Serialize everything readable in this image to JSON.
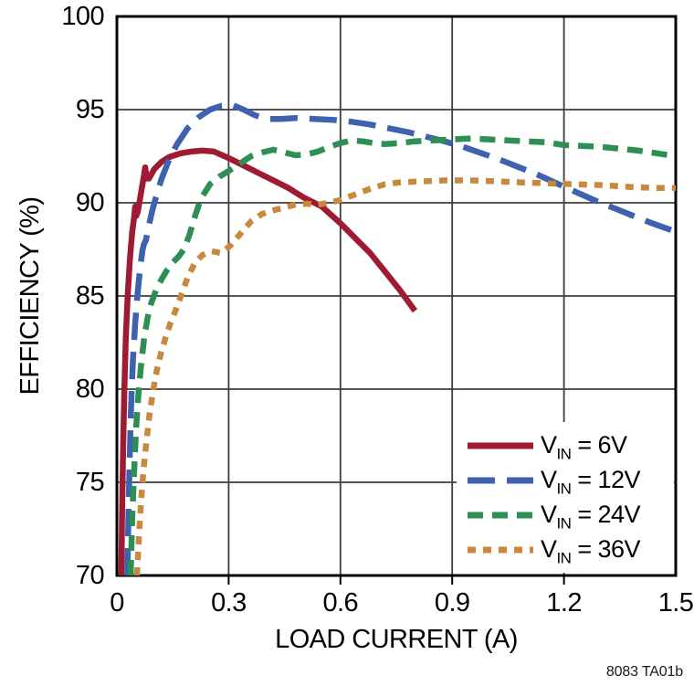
{
  "figure": {
    "caption": "8083 TA01b"
  },
  "style": {
    "background": "#ffffff",
    "grid_color": "#3d3d3d",
    "frame_color": "#000000",
    "text_color": "#000000",
    "curve_width": 6.5
  },
  "chart_data": {
    "type": "line",
    "title": "",
    "xlabel": "LOAD CURRENT (A)",
    "ylabel": "EFFICIENCY (%)",
    "xlim": [
      0,
      1.5
    ],
    "ylim": [
      70,
      100
    ],
    "x_ticks": [
      0,
      0.3,
      0.6,
      0.9,
      1.2,
      1.5
    ],
    "x_tick_labels": [
      "0",
      "0.3",
      "0.6",
      "0.9",
      "1.2",
      "1.5"
    ],
    "y_ticks": [
      70,
      75,
      80,
      85,
      90,
      95,
      100
    ],
    "y_tick_labels": [
      "70",
      "75",
      "80",
      "85",
      "90",
      "95",
      "100"
    ],
    "grid": true,
    "legend_position": "lower right",
    "series": [
      {
        "name": "VIN = 6V",
        "legend_prefix": "V",
        "legend_sub": "IN",
        "legend_suffix": " = 6V",
        "color": "#9E1B33",
        "dash": [],
        "points": [
          [
            0.012,
            70
          ],
          [
            0.014,
            73.5
          ],
          [
            0.017,
            77
          ],
          [
            0.02,
            80
          ],
          [
            0.024,
            82.8
          ],
          [
            0.029,
            85
          ],
          [
            0.035,
            87
          ],
          [
            0.041,
            88.4
          ],
          [
            0.046,
            89.2
          ],
          [
            0.049,
            89.8
          ],
          [
            0.052,
            89.3
          ],
          [
            0.056,
            89.5
          ],
          [
            0.062,
            90.2
          ],
          [
            0.068,
            90.9
          ],
          [
            0.073,
            91.5
          ],
          [
            0.076,
            91.9
          ],
          [
            0.08,
            91.3
          ],
          [
            0.086,
            91.3
          ],
          [
            0.1,
            91.8
          ],
          [
            0.12,
            92.2
          ],
          [
            0.14,
            92.45
          ],
          [
            0.17,
            92.65
          ],
          [
            0.2,
            92.75
          ],
          [
            0.23,
            92.8
          ],
          [
            0.26,
            92.75
          ],
          [
            0.3,
            92.4
          ],
          [
            0.34,
            92.0
          ],
          [
            0.38,
            91.6
          ],
          [
            0.42,
            91.2
          ],
          [
            0.46,
            90.8
          ],
          [
            0.5,
            90.3
          ],
          [
            0.55,
            89.8
          ],
          [
            0.6,
            88.9
          ],
          [
            0.64,
            88.1
          ],
          [
            0.68,
            87.3
          ],
          [
            0.72,
            86.3
          ],
          [
            0.76,
            85.3
          ],
          [
            0.8,
            84.2
          ]
        ]
      },
      {
        "name": "VIN = 12V",
        "legend_prefix": "V",
        "legend_sub": "IN",
        "legend_suffix": " = 12V",
        "color": "#3F62AE",
        "dash": [
          30,
          13
        ],
        "points": [
          [
            0.028,
            70
          ],
          [
            0.031,
            73
          ],
          [
            0.034,
            76
          ],
          [
            0.038,
            79
          ],
          [
            0.043,
            81.5
          ],
          [
            0.049,
            83.5
          ],
          [
            0.056,
            85.2
          ],
          [
            0.063,
            86.6
          ],
          [
            0.069,
            87.5
          ],
          [
            0.073,
            87.8
          ],
          [
            0.078,
            88.0
          ],
          [
            0.085,
            88.7
          ],
          [
            0.095,
            89.6
          ],
          [
            0.105,
            90.3
          ],
          [
            0.12,
            91.3
          ],
          [
            0.14,
            92.3
          ],
          [
            0.16,
            93.1
          ],
          [
            0.19,
            94.0
          ],
          [
            0.22,
            94.6
          ],
          [
            0.25,
            95.0
          ],
          [
            0.28,
            95.2
          ],
          [
            0.31,
            95.25
          ],
          [
            0.34,
            95.0
          ],
          [
            0.37,
            94.7
          ],
          [
            0.4,
            94.5
          ],
          [
            0.44,
            94.5
          ],
          [
            0.48,
            94.55
          ],
          [
            0.53,
            94.5
          ],
          [
            0.58,
            94.45
          ],
          [
            0.63,
            94.35
          ],
          [
            0.68,
            94.2
          ],
          [
            0.73,
            94.0
          ],
          [
            0.78,
            93.8
          ],
          [
            0.83,
            93.55
          ],
          [
            0.88,
            93.3
          ],
          [
            0.93,
            93.0
          ],
          [
            0.98,
            92.65
          ],
          [
            1.03,
            92.3
          ],
          [
            1.08,
            91.9
          ],
          [
            1.13,
            91.5
          ],
          [
            1.18,
            91.05
          ],
          [
            1.23,
            90.6
          ],
          [
            1.28,
            90.15
          ],
          [
            1.33,
            89.75
          ],
          [
            1.38,
            89.35
          ],
          [
            1.43,
            88.95
          ],
          [
            1.5,
            88.45
          ]
        ]
      },
      {
        "name": "VIN = 24V",
        "legend_prefix": "V",
        "legend_sub": "IN",
        "legend_suffix": " = 24V",
        "color": "#2E8F55",
        "dash": [
          17,
          10
        ],
        "points": [
          [
            0.037,
            70
          ],
          [
            0.041,
            73
          ],
          [
            0.046,
            75.5
          ],
          [
            0.052,
            78
          ],
          [
            0.058,
            79.8
          ],
          [
            0.065,
            81.3
          ],
          [
            0.073,
            82.7
          ],
          [
            0.082,
            83.8
          ],
          [
            0.092,
            84.6
          ],
          [
            0.105,
            85.3
          ],
          [
            0.12,
            85.9
          ],
          [
            0.135,
            86.4
          ],
          [
            0.15,
            86.8
          ],
          [
            0.165,
            87.1
          ],
          [
            0.18,
            87.5
          ],
          [
            0.195,
            88.3
          ],
          [
            0.21,
            89.3
          ],
          [
            0.225,
            90.2
          ],
          [
            0.25,
            91.0
          ],
          [
            0.275,
            91.4
          ],
          [
            0.3,
            91.7
          ],
          [
            0.33,
            92.1
          ],
          [
            0.36,
            92.5
          ],
          [
            0.39,
            92.7
          ],
          [
            0.42,
            92.85
          ],
          [
            0.45,
            92.7
          ],
          [
            0.48,
            92.55
          ],
          [
            0.51,
            92.6
          ],
          [
            0.54,
            92.75
          ],
          [
            0.57,
            93.0
          ],
          [
            0.6,
            93.2
          ],
          [
            0.63,
            93.35
          ],
          [
            0.66,
            93.3
          ],
          [
            0.69,
            93.2
          ],
          [
            0.72,
            93.15
          ],
          [
            0.76,
            93.2
          ],
          [
            0.8,
            93.3
          ],
          [
            0.85,
            93.35
          ],
          [
            0.9,
            93.4
          ],
          [
            0.95,
            93.45
          ],
          [
            1.0,
            93.4
          ],
          [
            1.05,
            93.35
          ],
          [
            1.1,
            93.3
          ],
          [
            1.15,
            93.25
          ],
          [
            1.2,
            93.1
          ],
          [
            1.25,
            93.05
          ],
          [
            1.3,
            93.0
          ],
          [
            1.35,
            92.9
          ],
          [
            1.4,
            92.8
          ],
          [
            1.45,
            92.65
          ],
          [
            1.5,
            92.5
          ]
        ]
      },
      {
        "name": "VIN = 36V",
        "legend_prefix": "V",
        "legend_sub": "IN",
        "legend_suffix": " = 36V",
        "color": "#C9893C",
        "dash": [
          9,
          8
        ],
        "points": [
          [
            0.054,
            70
          ],
          [
            0.059,
            72
          ],
          [
            0.065,
            74
          ],
          [
            0.072,
            75.8
          ],
          [
            0.08,
            77.3
          ],
          [
            0.088,
            78.7
          ],
          [
            0.097,
            79.9
          ],
          [
            0.107,
            81.0
          ],
          [
            0.118,
            81.9
          ],
          [
            0.13,
            82.7
          ],
          [
            0.143,
            83.5
          ],
          [
            0.157,
            84.2
          ],
          [
            0.172,
            85.0
          ],
          [
            0.19,
            86.0
          ],
          [
            0.21,
            86.8
          ],
          [
            0.23,
            87.2
          ],
          [
            0.255,
            87.4
          ],
          [
            0.28,
            87.3
          ],
          [
            0.305,
            87.7
          ],
          [
            0.33,
            88.3
          ],
          [
            0.36,
            89.0
          ],
          [
            0.39,
            89.4
          ],
          [
            0.42,
            89.6
          ],
          [
            0.45,
            89.75
          ],
          [
            0.48,
            89.9
          ],
          [
            0.51,
            89.95
          ],
          [
            0.54,
            89.9
          ],
          [
            0.57,
            90.0
          ],
          [
            0.6,
            90.15
          ],
          [
            0.64,
            90.45
          ],
          [
            0.68,
            90.75
          ],
          [
            0.72,
            91.0
          ],
          [
            0.76,
            91.1
          ],
          [
            0.82,
            91.15
          ],
          [
            0.88,
            91.2
          ],
          [
            0.95,
            91.2
          ],
          [
            1.02,
            91.15
          ],
          [
            1.08,
            91.1
          ],
          [
            1.15,
            91.05
          ],
          [
            1.22,
            91.0
          ],
          [
            1.3,
            90.95
          ],
          [
            1.38,
            90.85
          ],
          [
            1.44,
            90.8
          ],
          [
            1.5,
            90.8
          ]
        ]
      }
    ]
  }
}
